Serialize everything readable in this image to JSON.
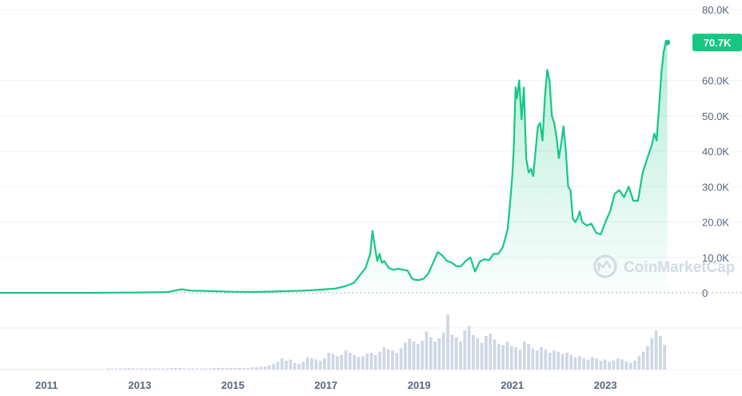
{
  "watermark": "CoinMarketCap",
  "colors": {
    "line": "#16c784",
    "grid": "#eff2f5",
    "axis_text": "#58667e",
    "volume": "#cfd6e4",
    "tag": "#16c784"
  },
  "chart_data": {
    "type": "area",
    "ylim": [
      0,
      80000
    ],
    "xlim": [
      2010.0,
      2024.8
    ],
    "y_ticks": [
      {
        "value": 80000,
        "label": "80.0K"
      },
      {
        "value": 60000,
        "label": "60.0K"
      },
      {
        "value": 50000,
        "label": "50.0K"
      },
      {
        "value": 40000,
        "label": "40.0K"
      },
      {
        "value": 30000,
        "label": "30.0K"
      },
      {
        "value": 20000,
        "label": "20.0K"
      },
      {
        "value": 10000,
        "label": "10.0K"
      },
      {
        "value": 0,
        "label": "0"
      }
    ],
    "x_ticks": [
      {
        "value": 2011,
        "label": "2011"
      },
      {
        "value": 2013,
        "label": "2013"
      },
      {
        "value": 2015,
        "label": "2015"
      },
      {
        "value": 2017,
        "label": "2017"
      },
      {
        "value": 2019,
        "label": "2019"
      },
      {
        "value": 2021,
        "label": "2021"
      },
      {
        "value": 2023,
        "label": "2023"
      }
    ],
    "current_price": {
      "value": 70700,
      "label": "70.7K"
    },
    "series": [
      {
        "x": [
          2010.0,
          2011.0,
          2012.0,
          2013.0,
          2013.6,
          2013.9,
          2014.0,
          2014.1,
          2014.5,
          2015.0,
          2015.5,
          2016.0,
          2016.5,
          2016.9,
          2017.2,
          2017.4,
          2017.6,
          2017.7,
          2017.85,
          2017.95,
          2018.0,
          2018.05,
          2018.1,
          2018.15,
          2018.2,
          2018.25,
          2018.35,
          2018.45,
          2018.55,
          2018.65,
          2018.75,
          2018.85,
          2018.9,
          2019.0,
          2019.1,
          2019.2,
          2019.3,
          2019.4,
          2019.5,
          2019.6,
          2019.7,
          2019.8,
          2019.9,
          2020.0,
          2020.1,
          2020.2,
          2020.3,
          2020.4,
          2020.5,
          2020.6,
          2020.7,
          2020.8,
          2020.9,
          2020.95,
          2021.0,
          2021.03,
          2021.07,
          2021.1,
          2021.15,
          2021.2,
          2021.25,
          2021.3,
          2021.35,
          2021.4,
          2021.45,
          2021.5,
          2021.55,
          2021.6,
          2021.65,
          2021.7,
          2021.75,
          2021.8,
          2021.85,
          2021.9,
          2021.95,
          2022.0,
          2022.05,
          2022.1,
          2022.15,
          2022.2,
          2022.25,
          2022.3,
          2022.35,
          2022.4,
          2022.45,
          2022.5,
          2022.6,
          2022.7,
          2022.8,
          2022.9,
          2023.0,
          2023.1,
          2023.2,
          2023.3,
          2023.4,
          2023.5,
          2023.6,
          2023.7,
          2023.8,
          2023.9,
          2024.0,
          2024.05,
          2024.1,
          2024.15,
          2024.2,
          2024.25,
          2024.3,
          2024.33
        ],
        "y": [
          0,
          5,
          10,
          100,
          200,
          1000,
          800,
          600,
          500,
          300,
          250,
          400,
          600,
          900,
          1200,
          1800,
          2800,
          4500,
          7000,
          11000,
          17500,
          13000,
          9000,
          11000,
          8500,
          9000,
          7000,
          6500,
          6800,
          6500,
          6300,
          4000,
          3700,
          3600,
          4000,
          5500,
          8500,
          11500,
          10500,
          9000,
          8500,
          7500,
          7500,
          9000,
          10000,
          6000,
          8800,
          9500,
          9200,
          11000,
          11000,
          13000,
          18000,
          25000,
          33000,
          40000,
          58000,
          55000,
          60000,
          49000,
          58000,
          38000,
          34000,
          35000,
          33000,
          40000,
          47000,
          48000,
          43000,
          55000,
          63000,
          60000,
          50000,
          48000,
          44000,
          38000,
          42000,
          47000,
          40000,
          30000,
          29000,
          21000,
          20000,
          21000,
          23000,
          20000,
          19000,
          19500,
          17000,
          16500,
          20000,
          23000,
          28000,
          29000,
          27000,
          30000,
          26000,
          26000,
          34000,
          38000,
          42000,
          45000,
          43000,
          52000,
          62000,
          68000,
          71000,
          70700
        ]
      }
    ],
    "volume_relative": [
      0.01,
      0.01,
      0.01,
      0.01,
      0.01,
      0.01,
      0.01,
      0.01,
      0.01,
      0.01,
      0.01,
      0.01,
      0.01,
      0.01,
      0.01,
      0.01,
      0.01,
      0.01,
      0.01,
      0.01,
      0.01,
      0.01,
      0.01,
      0.01,
      0.01,
      0.02,
      0.02,
      0.02,
      0.02,
      0.02,
      0.03,
      0.02,
      0.02,
      0.02,
      0.02,
      0.02,
      0.02,
      0.02,
      0.02,
      0.02,
      0.03,
      0.03,
      0.03,
      0.02,
      0.02,
      0.02,
      0.02,
      0.02,
      0.02,
      0.02,
      0.03,
      0.03,
      0.03,
      0.03,
      0.03,
      0.03,
      0.03,
      0.03,
      0.03,
      0.04,
      0.04,
      0.05,
      0.06,
      0.08,
      0.1,
      0.14,
      0.2,
      0.16,
      0.18,
      0.12,
      0.1,
      0.14,
      0.22,
      0.2,
      0.18,
      0.16,
      0.2,
      0.3,
      0.28,
      0.24,
      0.26,
      0.34,
      0.3,
      0.26,
      0.22,
      0.24,
      0.28,
      0.3,
      0.26,
      0.32,
      0.4,
      0.36,
      0.34,
      0.3,
      0.38,
      0.48,
      0.55,
      0.5,
      0.46,
      0.52,
      0.68,
      0.58,
      0.5,
      0.56,
      0.66,
      0.98,
      0.62,
      0.58,
      0.5,
      0.7,
      0.78,
      0.62,
      0.56,
      0.48,
      0.6,
      0.64,
      0.54,
      0.46,
      0.44,
      0.5,
      0.42,
      0.4,
      0.36,
      0.5,
      0.46,
      0.38,
      0.34,
      0.4,
      0.36,
      0.3,
      0.34,
      0.32,
      0.28,
      0.3,
      0.26,
      0.22,
      0.24,
      0.2,
      0.18,
      0.22,
      0.2,
      0.16,
      0.18,
      0.14,
      0.16,
      0.2,
      0.18,
      0.14,
      0.12,
      0.16,
      0.24,
      0.32,
      0.42,
      0.56,
      0.7,
      0.6,
      0.44
    ]
  }
}
